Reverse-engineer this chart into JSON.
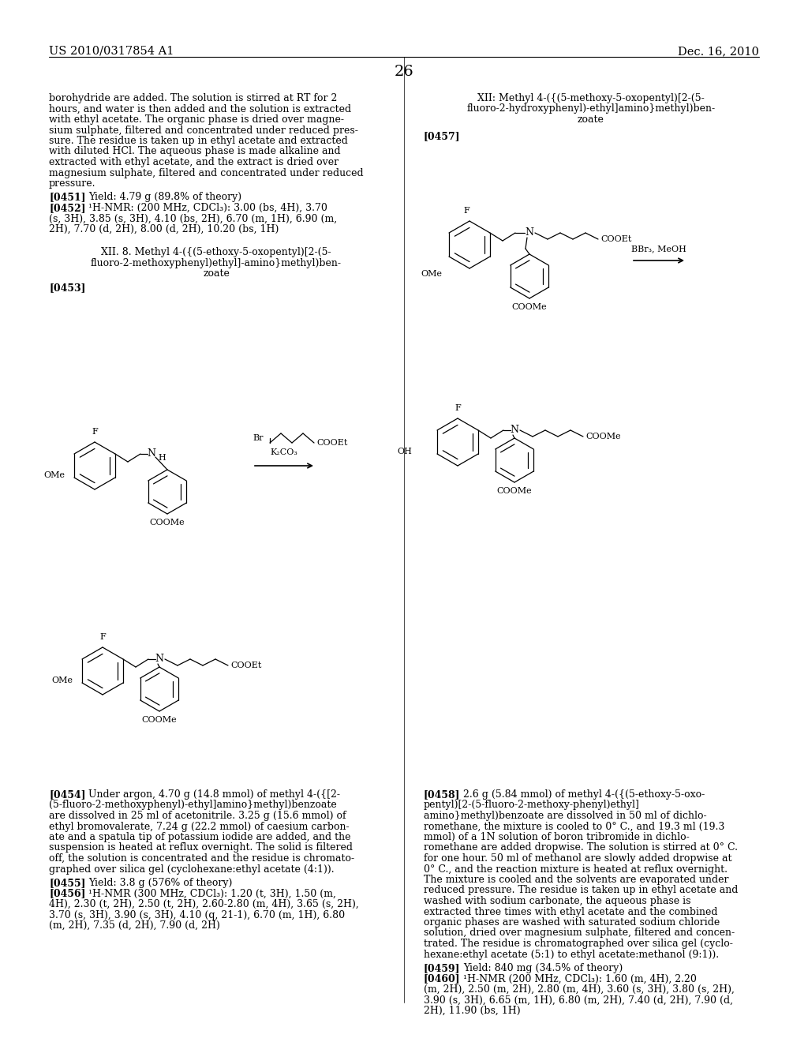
{
  "page_header_left": "US 2010/0317854 A1",
  "page_header_right": "Dec. 16, 2010",
  "page_number": "26",
  "bg": "#ffffff",
  "tc": "#000000",
  "fs": 9.5
}
